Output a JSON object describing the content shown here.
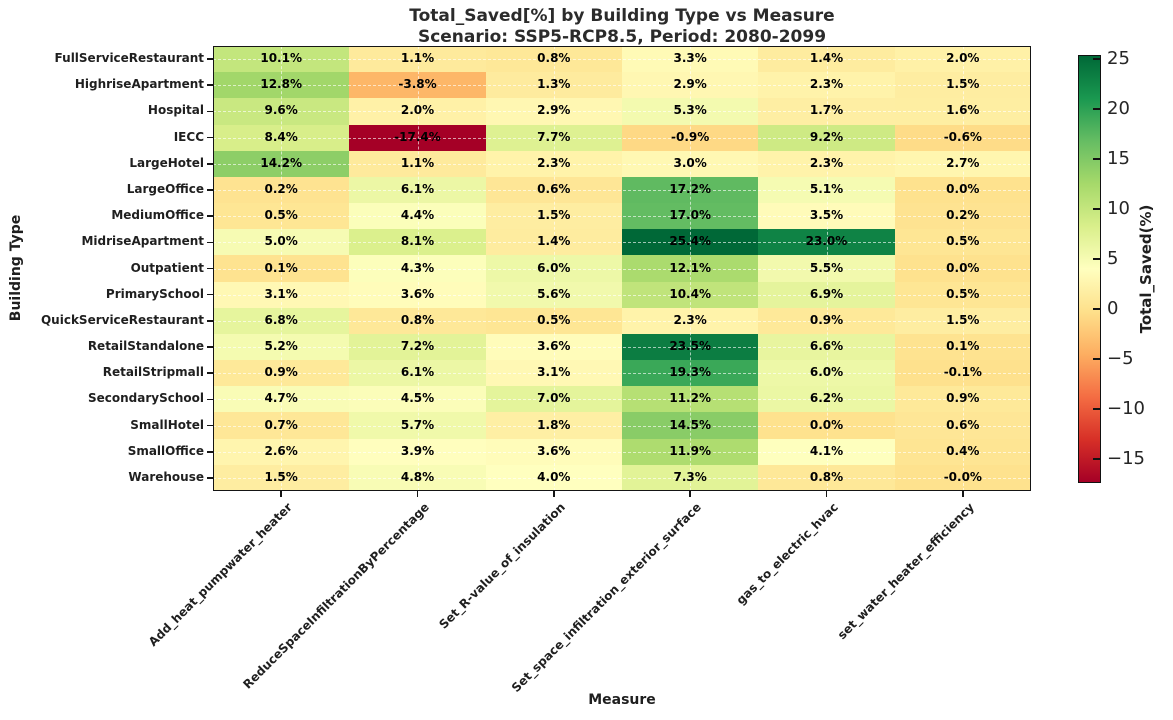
{
  "title": {
    "line1": "Total_Saved[%] by Building Type vs Measure",
    "line2": "Scenario: SSP5-RCP8.5, Period: 2080-2099"
  },
  "axes": {
    "x_label": "Measure",
    "y_label": "Building Type"
  },
  "colorbar": {
    "label": "Total_Saved(%)",
    "tick_values": [
      25,
      20,
      15,
      10,
      5,
      0,
      -5,
      -10,
      -15
    ]
  },
  "chart_data": {
    "type": "heatmap",
    "title": "Total_Saved[%] by Building Type vs Measure",
    "subtitle": "Scenario: SSP5-RCP8.5, Period: 2080-2099",
    "xlabel": "Measure",
    "ylabel": "Building Type",
    "legend_position": "right-colorbar",
    "grid": "dashed",
    "columns": [
      "Add_heat_pumpwater_heater",
      "ReduceSpaceInfiltrationByPercentage",
      "Set_R-value_of_insulation",
      "Set_space_infiltration_exterior_surface",
      "gas_to_electric_hvac",
      "set_water_heater_efficiency"
    ],
    "rows": [
      "FullServiceRestaurant",
      "HighriseApartment",
      "Hospital",
      "IECC",
      "LargeHotel",
      "LargeOffice",
      "MediumOffice",
      "MidriseApartment",
      "Outpatient",
      "PrimarySchool",
      "QuickServiceRestaurant",
      "RetailStandalone",
      "RetailStripmall",
      "SecondarySchool",
      "SmallHotel",
      "SmallOffice",
      "Warehouse"
    ],
    "values": [
      [
        "10.1",
        "1.1",
        "0.8",
        "3.3",
        "1.4",
        "2.0"
      ],
      [
        "12.8",
        "-3.8",
        "1.3",
        "2.9",
        "2.3",
        "1.5"
      ],
      [
        "9.6",
        "2.0",
        "2.9",
        "5.3",
        "1.7",
        "1.6"
      ],
      [
        "8.4",
        "-17.4",
        "7.7",
        "-0.9",
        "9.2",
        "-0.6"
      ],
      [
        "14.2",
        "1.1",
        "2.3",
        "3.0",
        "2.3",
        "2.7"
      ],
      [
        "0.2",
        "6.1",
        "0.6",
        "17.2",
        "5.1",
        "0.0"
      ],
      [
        "0.5",
        "4.4",
        "1.5",
        "17.0",
        "3.5",
        "0.2"
      ],
      [
        "5.0",
        "8.1",
        "1.4",
        "25.4",
        "23.0",
        "0.5"
      ],
      [
        "0.1",
        "4.3",
        "6.0",
        "12.1",
        "5.5",
        "0.0"
      ],
      [
        "3.1",
        "3.6",
        "5.6",
        "10.4",
        "6.9",
        "0.5"
      ],
      [
        "6.8",
        "0.8",
        "0.5",
        "2.3",
        "0.9",
        "1.5"
      ],
      [
        "5.2",
        "7.2",
        "3.6",
        "23.5",
        "6.6",
        "0.1"
      ],
      [
        "0.9",
        "6.1",
        "3.1",
        "19.3",
        "6.0",
        "-0.1"
      ],
      [
        "4.7",
        "4.5",
        "7.0",
        "11.2",
        "6.2",
        "0.9"
      ],
      [
        "0.7",
        "5.7",
        "1.8",
        "14.5",
        "0.0",
        "0.6"
      ],
      [
        "2.6",
        "3.9",
        "3.6",
        "11.9",
        "4.1",
        "0.4"
      ],
      [
        "1.5",
        "4.8",
        "4.0",
        "7.3",
        "0.8",
        "-0.0"
      ]
    ],
    "value_suffix": "%",
    "color_scale": {
      "colormap": "RdYlGn",
      "vmin": -17.4,
      "vmax": 25.4,
      "stop_colors": [
        "#a50026",
        "#d73027",
        "#f46d43",
        "#fdae61",
        "#fee08b",
        "#ffffbf",
        "#d9ef8b",
        "#a6d96a",
        "#66bd63",
        "#1a9850",
        "#006837"
      ]
    },
    "colorbar": {
      "label": "Total_Saved(%)",
      "ticks": [
        25,
        20,
        15,
        10,
        5,
        0,
        -5,
        -10,
        -15
      ]
    }
  }
}
